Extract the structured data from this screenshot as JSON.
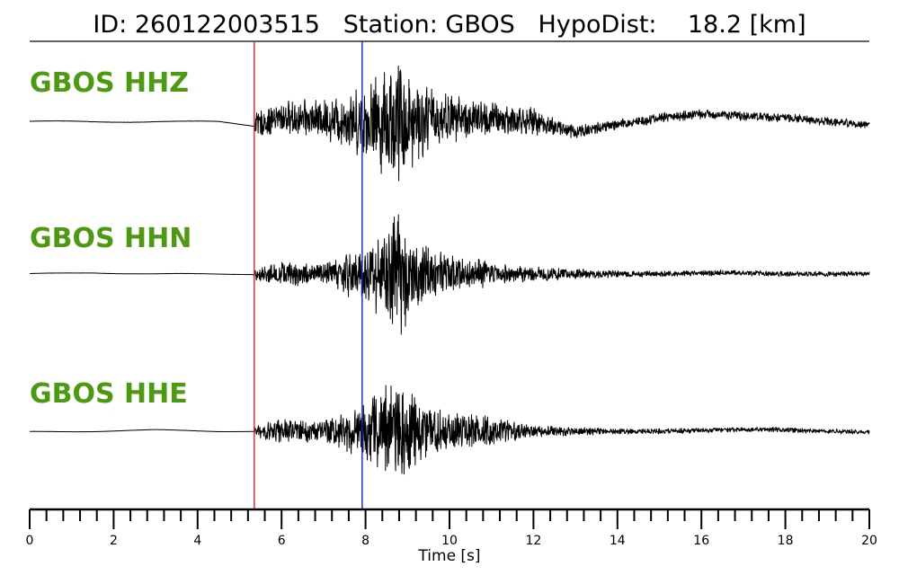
{
  "header": {
    "id_label": "ID:",
    "id_value": "260122003515",
    "station_label": "Station:",
    "station_value": "GBOS",
    "hypodist_label": "HypoDist:",
    "hypodist_value": "18.2",
    "hypodist_unit": "[km]"
  },
  "chart_data": {
    "type": "line",
    "xlabel": "Time [s]",
    "xlim": [
      0,
      20
    ],
    "x_major_ticks": [
      0,
      2,
      4,
      6,
      8,
      10,
      12,
      14,
      16,
      18,
      20
    ],
    "x_minor_step": 0.4,
    "grid": false,
    "picks": [
      {
        "phase": "P",
        "time": 5.35,
        "color": "#e8211d"
      },
      {
        "phase": "S",
        "time": 7.92,
        "color": "#1a1ad6"
      }
    ],
    "label_color": "#4c9a0f",
    "trace_color": "#000000",
    "series": [
      {
        "name": "GBOS HHZ",
        "envelope": [
          [
            0.0,
            0.04
          ],
          [
            5.3,
            0.04
          ],
          [
            5.4,
            0.18
          ],
          [
            6.0,
            0.25
          ],
          [
            7.0,
            0.3
          ],
          [
            7.5,
            0.42
          ],
          [
            8.0,
            0.55
          ],
          [
            8.5,
            0.85
          ],
          [
            8.8,
            1.0
          ],
          [
            9.2,
            0.65
          ],
          [
            9.8,
            0.4
          ],
          [
            10.5,
            0.3
          ],
          [
            11.5,
            0.25
          ],
          [
            12.5,
            0.14
          ],
          [
            14.0,
            0.08
          ],
          [
            20.0,
            0.06
          ]
        ],
        "baseline": [
          [
            0.0,
            0.0
          ],
          [
            1.5,
            -0.01
          ],
          [
            3.0,
            0.0
          ],
          [
            4.5,
            -0.01
          ],
          [
            5.3,
            -0.06
          ],
          [
            6.0,
            0.05
          ],
          [
            8.0,
            0.0
          ],
          [
            10.0,
            0.05
          ],
          [
            12.0,
            0.0
          ],
          [
            13.0,
            -0.15
          ],
          [
            15.0,
            0.05
          ],
          [
            16.0,
            0.1
          ],
          [
            18.0,
            0.05
          ],
          [
            20.0,
            -0.05
          ]
        ]
      },
      {
        "name": "GBOS HHN",
        "envelope": [
          [
            0.0,
            0.03
          ],
          [
            5.3,
            0.03
          ],
          [
            5.4,
            0.1
          ],
          [
            6.0,
            0.2
          ],
          [
            7.0,
            0.18
          ],
          [
            7.5,
            0.35
          ],
          [
            8.0,
            0.45
          ],
          [
            8.5,
            0.8
          ],
          [
            8.8,
            1.0
          ],
          [
            9.2,
            0.6
          ],
          [
            10.0,
            0.3
          ],
          [
            11.0,
            0.2
          ],
          [
            12.0,
            0.12
          ],
          [
            14.0,
            0.05
          ],
          [
            20.0,
            0.04
          ]
        ],
        "baseline": [
          [
            0.0,
            0.0
          ],
          [
            1.5,
            0.02
          ],
          [
            3.0,
            0.0
          ],
          [
            4.5,
            0.0
          ],
          [
            5.3,
            0.0
          ],
          [
            10.0,
            0.0
          ],
          [
            15.0,
            0.0
          ],
          [
            16.5,
            0.02
          ],
          [
            18.0,
            0.0
          ],
          [
            20.0,
            0.0
          ]
        ]
      },
      {
        "name": "GBOS HHE",
        "envelope": [
          [
            0.0,
            0.03
          ],
          [
            5.3,
            0.03
          ],
          [
            5.4,
            0.12
          ],
          [
            6.0,
            0.22
          ],
          [
            7.0,
            0.2
          ],
          [
            7.5,
            0.4
          ],
          [
            8.0,
            0.5
          ],
          [
            8.5,
            0.9
          ],
          [
            8.8,
            1.0
          ],
          [
            9.3,
            0.6
          ],
          [
            10.0,
            0.35
          ],
          [
            11.0,
            0.25
          ],
          [
            12.0,
            0.1
          ],
          [
            14.0,
            0.05
          ],
          [
            20.0,
            0.04
          ]
        ],
        "baseline": [
          [
            0.0,
            -0.01
          ],
          [
            1.5,
            0.0
          ],
          [
            3.0,
            0.02
          ],
          [
            4.5,
            0.0
          ],
          [
            5.3,
            0.0
          ],
          [
            10.0,
            0.0
          ],
          [
            15.0,
            0.0
          ],
          [
            16.5,
            0.02
          ],
          [
            17.5,
            0.03
          ],
          [
            19.0,
            0.0
          ],
          [
            20.0,
            -0.01
          ]
        ]
      }
    ]
  }
}
